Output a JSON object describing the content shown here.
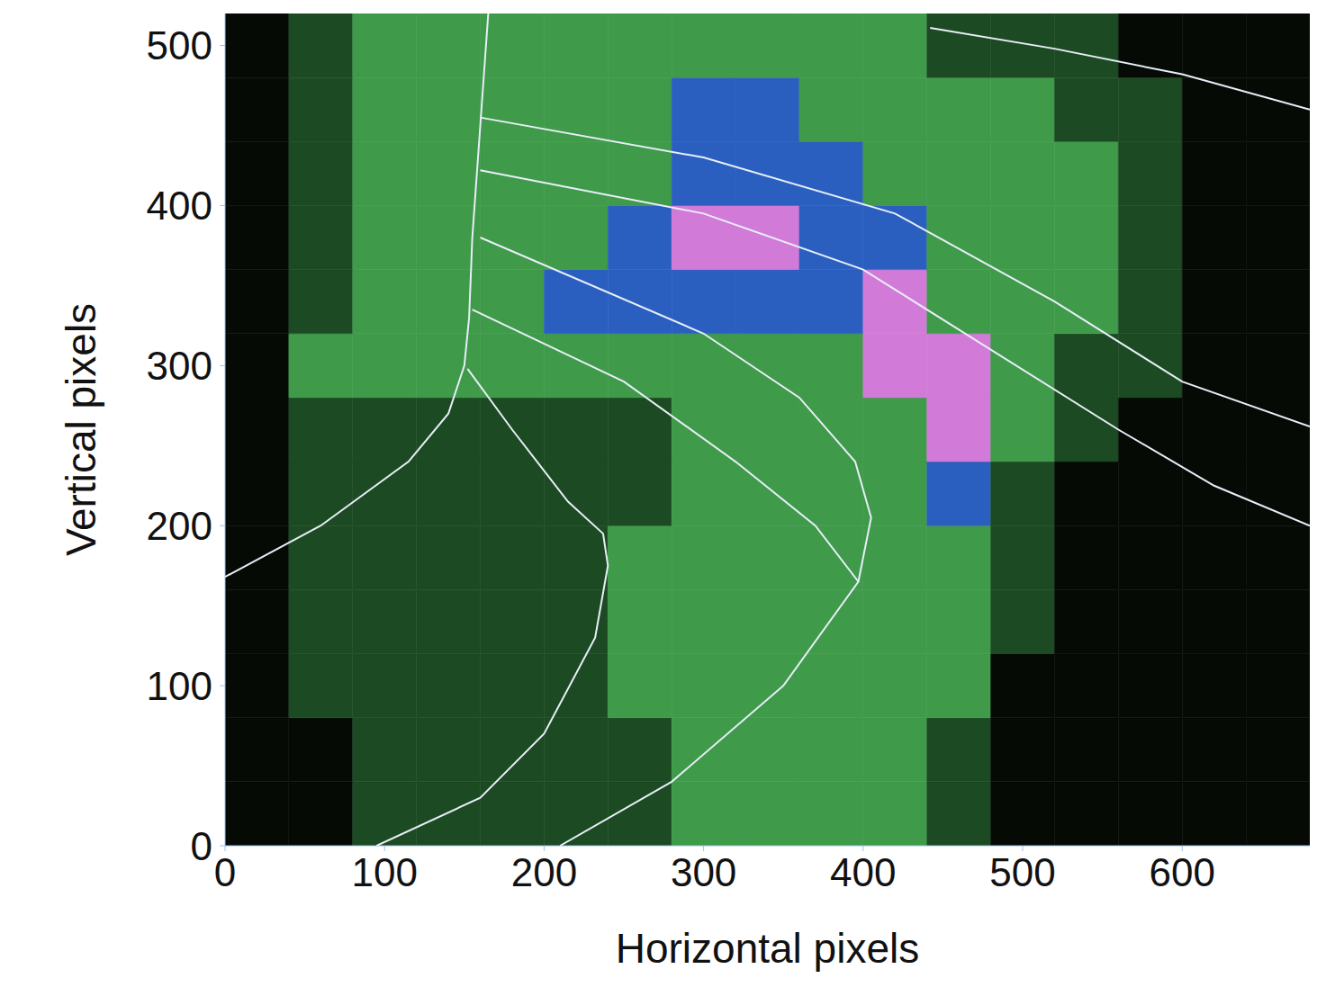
{
  "chart_data": {
    "type": "heatmap",
    "xlabel": "Horizontal pixels",
    "ylabel": "Vertical pixels",
    "xlim": [
      0,
      680
    ],
    "ylim": [
      0,
      520
    ],
    "xticks": [
      0,
      100,
      200,
      300,
      400,
      500,
      600
    ],
    "yticks": [
      0,
      100,
      200,
      300,
      400,
      500
    ],
    "cells": {
      "x_edges": [
        0,
        40,
        80,
        120,
        160,
        200,
        240,
        280,
        320,
        360,
        400,
        440,
        480,
        520,
        560,
        600,
        640,
        680
      ],
      "y_edges": [
        0,
        40,
        80,
        120,
        160,
        200,
        240,
        280,
        320,
        360,
        400,
        440,
        480,
        520
      ],
      "colors": [
        "#050a05",
        "#1c4a22",
        "#3f9a4a",
        "#2a5fc0",
        "#d27ad8"
      ],
      "values": [
        [
          0,
          0,
          1,
          1,
          1,
          1,
          1,
          2,
          2,
          2,
          2,
          1,
          0,
          0,
          0,
          0,
          0
        ],
        [
          0,
          0,
          1,
          1,
          1,
          1,
          1,
          2,
          2,
          2,
          2,
          1,
          0,
          0,
          0,
          0,
          0
        ],
        [
          0,
          1,
          1,
          1,
          1,
          1,
          2,
          2,
          2,
          2,
          2,
          2,
          0,
          0,
          0,
          0,
          0
        ],
        [
          0,
          1,
          1,
          1,
          1,
          1,
          2,
          2,
          2,
          2,
          2,
          2,
          1,
          0,
          0,
          0,
          0
        ],
        [
          0,
          1,
          1,
          1,
          1,
          1,
          2,
          2,
          2,
          2,
          2,
          2,
          1,
          0,
          0,
          0,
          0
        ],
        [
          0,
          1,
          1,
          1,
          1,
          1,
          1,
          2,
          2,
          2,
          2,
          3,
          1,
          0,
          0,
          0,
          0
        ],
        [
          0,
          1,
          1,
          1,
          1,
          1,
          1,
          2,
          2,
          2,
          2,
          4,
          2,
          1,
          0,
          0,
          0
        ],
        [
          0,
          2,
          2,
          2,
          2,
          2,
          2,
          2,
          2,
          2,
          4,
          4,
          2,
          1,
          1,
          0,
          0
        ],
        [
          0,
          1,
          2,
          2,
          2,
          3,
          3,
          3,
          3,
          3,
          4,
          2,
          2,
          2,
          1,
          0,
          0
        ],
        [
          0,
          1,
          2,
          2,
          2,
          2,
          3,
          4,
          4,
          3,
          3,
          2,
          2,
          2,
          1,
          0,
          0
        ],
        [
          0,
          1,
          2,
          2,
          2,
          2,
          2,
          3,
          3,
          3,
          2,
          2,
          2,
          2,
          1,
          0,
          0
        ],
        [
          0,
          1,
          2,
          2,
          2,
          2,
          2,
          3,
          3,
          2,
          2,
          2,
          2,
          1,
          1,
          0,
          0
        ],
        [
          0,
          1,
          2,
          2,
          2,
          2,
          2,
          2,
          2,
          2,
          2,
          1,
          1,
          1,
          0,
          0,
          0
        ]
      ]
    },
    "series": [
      {
        "color": "#e8eef8",
        "line_style": "solid",
        "x": [
          165,
          160,
          155,
          153,
          150,
          140,
          115,
          60,
          0
        ],
        "y": [
          520,
          450,
          380,
          330,
          300,
          270,
          240,
          200,
          168
        ]
      },
      {
        "color": "#e8eef8",
        "line_style": "solid",
        "x": [
          152,
          180,
          215,
          237,
          240,
          232,
          200,
          160,
          95
        ],
        "y": [
          298,
          260,
          215,
          195,
          175,
          130,
          70,
          30,
          0
        ]
      },
      {
        "color": "#e8eef8",
        "line_style": "solid",
        "x": [
          155,
          250,
          320,
          370,
          397,
          350,
          280,
          210
        ],
        "y": [
          335,
          290,
          240,
          200,
          165,
          100,
          40,
          0
        ]
      },
      {
        "color": "#e8eef8",
        "line_style": "solid",
        "x": [
          160,
          300,
          360,
          395,
          405,
          397
        ],
        "y": [
          380,
          320,
          280,
          240,
          205,
          165
        ]
      },
      {
        "color": "#e8eef8",
        "line_style": "solid",
        "x": [
          160,
          300,
          400,
          480,
          560,
          620,
          680
        ],
        "y": [
          422,
          395,
          360,
          310,
          260,
          225,
          200
        ]
      },
      {
        "color": "#e8eef8",
        "line_style": "solid",
        "x": [
          160,
          300,
          420,
          520,
          600,
          680
        ],
        "y": [
          455,
          430,
          395,
          340,
          290,
          262
        ]
      },
      {
        "color": "#e8eef8",
        "line_style": "solid",
        "x": [
          442,
          520,
          600,
          680
        ],
        "y": [
          511,
          498,
          482,
          460
        ]
      }
    ]
  }
}
